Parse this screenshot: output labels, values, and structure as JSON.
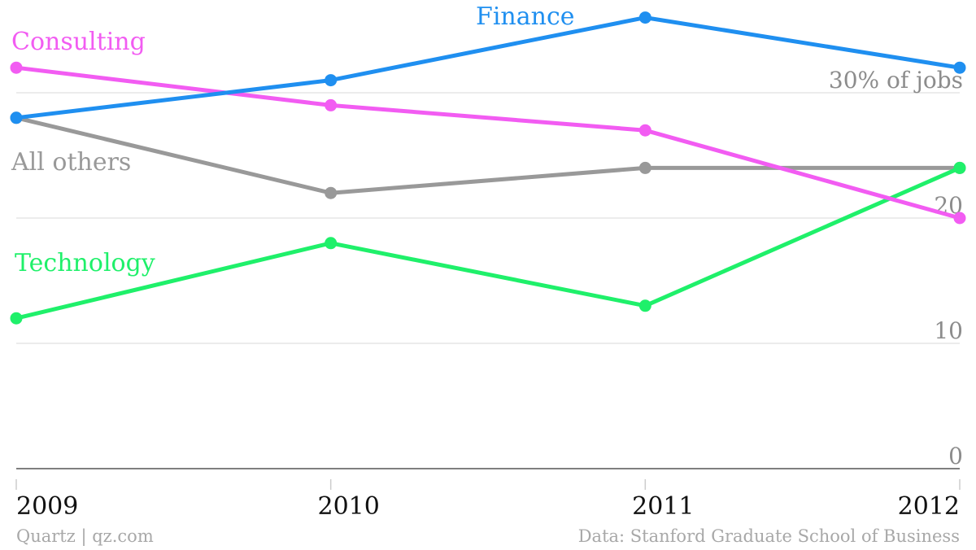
{
  "chart_data": {
    "type": "line",
    "title": "",
    "xlabel": "",
    "ylabel": "",
    "x": [
      "2009",
      "2010",
      "2011",
      "2012"
    ],
    "ylim": [
      0,
      30
    ],
    "yticks": [
      {
        "value": 0,
        "label": "0"
      },
      {
        "value": 10,
        "label": "10"
      },
      {
        "value": 20,
        "label": "20"
      },
      {
        "value": 30,
        "label": "30% of jobs"
      }
    ],
    "grid": true,
    "series": [
      {
        "name": "Finance",
        "color": "#1f8ff0",
        "values": [
          28,
          31,
          36,
          32
        ]
      },
      {
        "name": "Consulting",
        "color": "#f25cf2",
        "values": [
          32,
          29,
          27,
          20
        ]
      },
      {
        "name": "All others",
        "color": "#999999",
        "values": [
          28,
          22,
          24,
          24
        ]
      },
      {
        "name": "Technology",
        "color": "#1ff06a",
        "values": [
          12,
          18,
          13,
          24
        ]
      }
    ]
  },
  "footer": {
    "source_left": "Quartz | qz.com",
    "source_right": "Data: Stanford Graduate School of Business"
  }
}
